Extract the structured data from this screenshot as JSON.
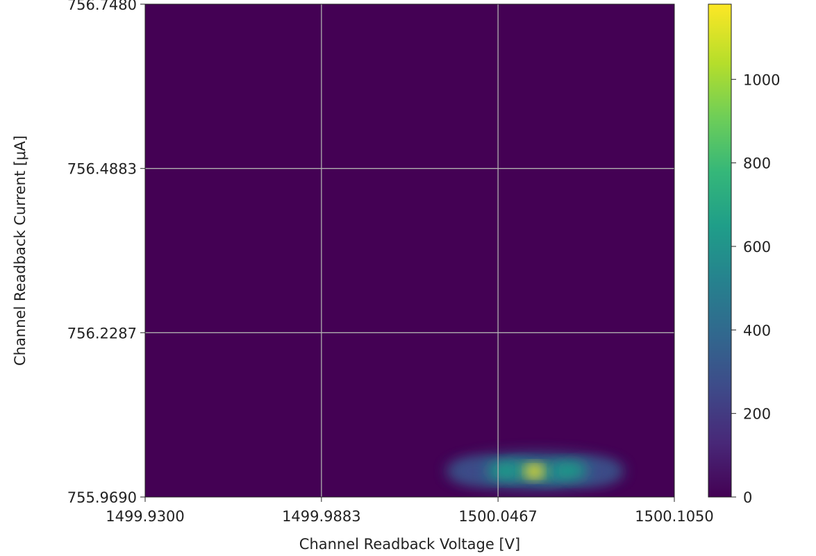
{
  "chart_data": {
    "type": "heatmap",
    "title": "",
    "xlabel": "Channel Readback Voltage [V]",
    "ylabel": "Channel Readback Current [μA]",
    "xlim": [
      1499.93,
      1500.105
    ],
    "ylim": [
      755.969,
      756.748
    ],
    "xticks": [
      "1499.9300",
      "1499.9883",
      "1500.0467",
      "1500.1050"
    ],
    "yticks": [
      "755.9690",
      "756.2287",
      "756.4883",
      "756.7480"
    ],
    "grid": true,
    "colormap": "viridis",
    "colorbar": {
      "range": [
        0,
        1180
      ],
      "ticks": [
        "0",
        "200",
        "400",
        "600",
        "800",
        "1000"
      ]
    },
    "hotspots": [
      {
        "x": 1500.0587,
        "y": 756.0095,
        "value": 1180
      },
      {
        "x": 1500.0486,
        "y": 756.0102,
        "value": 700
      },
      {
        "x": 1500.0705,
        "y": 756.0108,
        "value": 650
      },
      {
        "x": 1500.0545,
        "y": 756.0115,
        "value": 580
      },
      {
        "x": 1500.063,
        "y": 756.008,
        "value": 520
      },
      {
        "x": 1500.0395,
        "y": 756.01,
        "value": 300
      },
      {
        "x": 1500.078,
        "y": 756.0092,
        "value": 260
      }
    ]
  }
}
